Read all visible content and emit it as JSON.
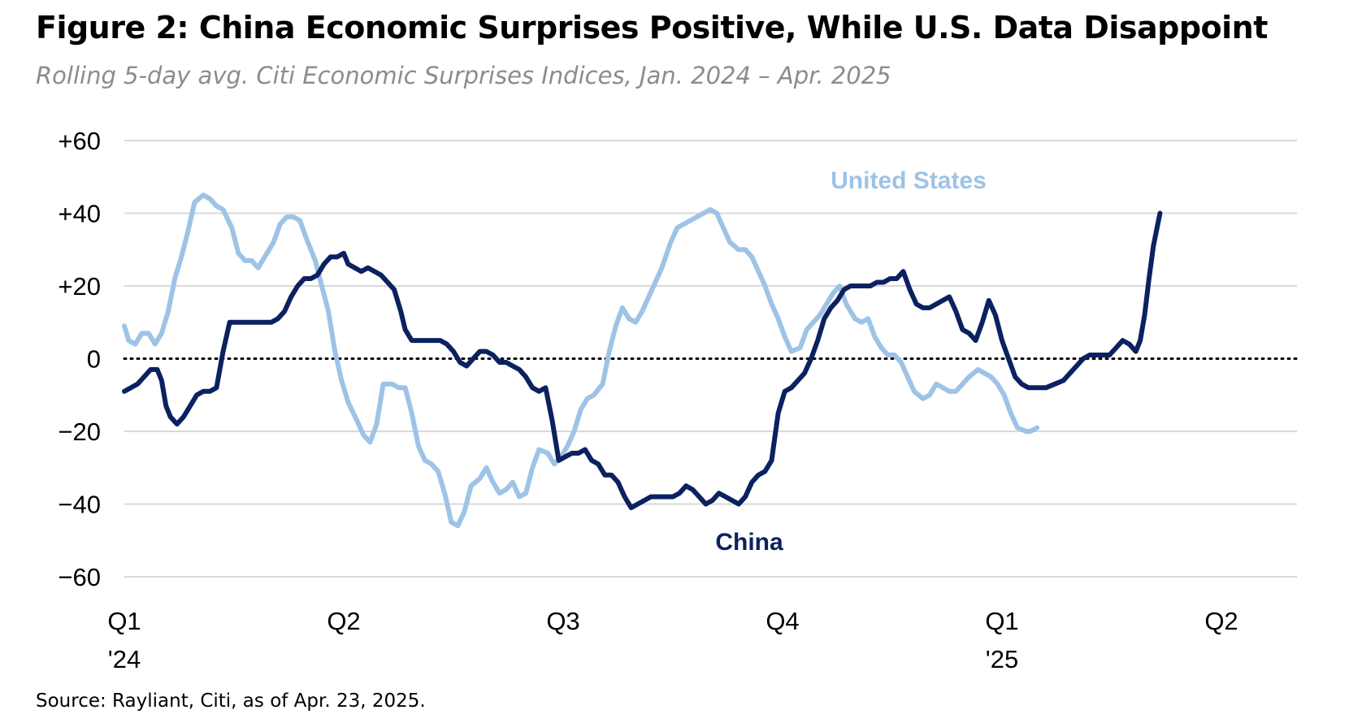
{
  "title": "Figure 2: China Economic Surprises Positive, While U.S. Data Disappoint",
  "subtitle": "Rolling 5-day avg. Citi Economic Surprises Indices, Jan. 2024 – Apr. 2025",
  "source": "Source: Rayliant, Citi, as of Apr. 23, 2025.",
  "colors": {
    "united_states": "#9dc3e6",
    "china": "#0b2160",
    "grid": "#d9d9d9",
    "zero_line": "#000000"
  },
  "chart_data": {
    "type": "line",
    "x_unit": "quarter (0 = Q1 '24)",
    "ylim": [
      -60,
      60
    ],
    "yticks": [
      {
        "value": 60,
        "label": "+60"
      },
      {
        "value": 40,
        "label": "+40"
      },
      {
        "value": 20,
        "label": "+20"
      },
      {
        "value": 0,
        "label": "0"
      },
      {
        "value": -20,
        "label": "−20"
      },
      {
        "value": -40,
        "label": "−40"
      },
      {
        "value": -60,
        "label": "−60"
      }
    ],
    "xticks": [
      {
        "x": 0,
        "label": "Q1",
        "sublabel": "'24"
      },
      {
        "x": 1,
        "label": "Q2",
        "sublabel": ""
      },
      {
        "x": 2,
        "label": "Q3",
        "sublabel": ""
      },
      {
        "x": 3,
        "label": "Q4",
        "sublabel": ""
      },
      {
        "x": 4,
        "label": "Q1",
        "sublabel": "'25"
      },
      {
        "x": 5,
        "label": "Q2",
        "sublabel": ""
      }
    ],
    "zero_line": "dotted",
    "grid": true,
    "series": [
      {
        "name": "United States",
        "color": "#9dc3e6",
        "points": [
          [
            0.0,
            9
          ],
          [
            0.02,
            5
          ],
          [
            0.05,
            4
          ],
          [
            0.08,
            7
          ],
          [
            0.11,
            7
          ],
          [
            0.14,
            4
          ],
          [
            0.17,
            7
          ],
          [
            0.2,
            13
          ],
          [
            0.23,
            22
          ],
          [
            0.26,
            28
          ],
          [
            0.29,
            35
          ],
          [
            0.32,
            43
          ],
          [
            0.36,
            45
          ],
          [
            0.39,
            44
          ],
          [
            0.42,
            42
          ],
          [
            0.45,
            41
          ],
          [
            0.49,
            36
          ],
          [
            0.52,
            29
          ],
          [
            0.55,
            27
          ],
          [
            0.58,
            27
          ],
          [
            0.61,
            25
          ],
          [
            0.65,
            29
          ],
          [
            0.68,
            32
          ],
          [
            0.71,
            37
          ],
          [
            0.74,
            39
          ],
          [
            0.77,
            39
          ],
          [
            0.8,
            38
          ],
          [
            0.83,
            33
          ],
          [
            0.87,
            27
          ],
          [
            0.9,
            20
          ],
          [
            0.93,
            13
          ],
          [
            0.96,
            2
          ],
          [
            0.99,
            -6
          ],
          [
            1.02,
            -12
          ],
          [
            1.06,
            -17
          ],
          [
            1.09,
            -21
          ],
          [
            1.12,
            -23
          ],
          [
            1.15,
            -18
          ],
          [
            1.18,
            -7
          ],
          [
            1.22,
            -7
          ],
          [
            1.25,
            -8
          ],
          [
            1.28,
            -8
          ],
          [
            1.31,
            -15
          ],
          [
            1.34,
            -24
          ],
          [
            1.37,
            -28
          ],
          [
            1.4,
            -29
          ],
          [
            1.43,
            -31
          ],
          [
            1.46,
            -37
          ],
          [
            1.49,
            -45
          ],
          [
            1.52,
            -46
          ],
          [
            1.55,
            -42
          ],
          [
            1.58,
            -35
          ],
          [
            1.62,
            -33
          ],
          [
            1.65,
            -30
          ],
          [
            1.68,
            -34
          ],
          [
            1.71,
            -37
          ],
          [
            1.74,
            -36
          ],
          [
            1.77,
            -34
          ],
          [
            1.8,
            -38
          ],
          [
            1.83,
            -37
          ],
          [
            1.86,
            -30
          ],
          [
            1.89,
            -25
          ],
          [
            1.93,
            -26
          ],
          [
            1.96,
            -29
          ],
          [
            1.99,
            -27
          ],
          [
            2.02,
            -24
          ],
          [
            2.05,
            -20
          ],
          [
            2.08,
            -14
          ],
          [
            2.11,
            -11
          ],
          [
            2.14,
            -10
          ],
          [
            2.18,
            -7
          ],
          [
            2.21,
            2
          ],
          [
            2.24,
            9
          ],
          [
            2.27,
            14
          ],
          [
            2.3,
            11
          ],
          [
            2.33,
            10
          ],
          [
            2.36,
            13
          ],
          [
            2.39,
            17
          ],
          [
            2.42,
            21
          ],
          [
            2.45,
            25
          ],
          [
            2.49,
            32
          ],
          [
            2.52,
            36
          ],
          [
            2.55,
            37
          ],
          [
            2.58,
            38
          ],
          [
            2.61,
            39
          ],
          [
            2.64,
            40
          ],
          [
            2.67,
            41
          ],
          [
            2.7,
            40
          ],
          [
            2.73,
            36
          ],
          [
            2.76,
            32
          ],
          [
            2.8,
            30
          ],
          [
            2.83,
            30
          ],
          [
            2.86,
            28
          ],
          [
            2.89,
            24
          ],
          [
            2.92,
            20
          ],
          [
            2.95,
            15
          ],
          [
            2.98,
            11
          ],
          [
            3.01,
            6
          ],
          [
            3.04,
            2
          ],
          [
            3.08,
            3
          ],
          [
            3.11,
            8
          ],
          [
            3.14,
            10
          ],
          [
            3.17,
            12
          ],
          [
            3.2,
            15
          ],
          [
            3.23,
            18
          ],
          [
            3.26,
            20
          ],
          [
            3.29,
            15
          ],
          [
            3.33,
            11
          ],
          [
            3.36,
            10
          ],
          [
            3.39,
            11
          ],
          [
            3.42,
            6
          ],
          [
            3.45,
            3
          ],
          [
            3.48,
            1
          ],
          [
            3.51,
            1
          ],
          [
            3.54,
            -1
          ],
          [
            3.57,
            -5
          ],
          [
            3.6,
            -9
          ],
          [
            3.64,
            -11
          ],
          [
            3.67,
            -10
          ],
          [
            3.7,
            -7
          ],
          [
            3.73,
            -8
          ],
          [
            3.76,
            -9
          ],
          [
            3.79,
            -9
          ],
          [
            3.82,
            -7
          ],
          [
            3.85,
            -5
          ],
          [
            3.89,
            -3
          ],
          [
            3.92,
            -4
          ],
          [
            3.95,
            -5
          ],
          [
            3.98,
            -7
          ],
          [
            4.01,
            -10
          ],
          [
            4.04,
            -15
          ],
          [
            4.07,
            -19
          ],
          [
            4.11,
            -20
          ],
          [
            4.13,
            -20
          ],
          [
            4.16,
            -19
          ]
        ]
      },
      {
        "name": "China",
        "color": "#0b2160",
        "points": [
          [
            0.0,
            -9
          ],
          [
            0.03,
            -8
          ],
          [
            0.06,
            -7
          ],
          [
            0.09,
            -5
          ],
          [
            0.12,
            -3
          ],
          [
            0.15,
            -3
          ],
          [
            0.17,
            -6
          ],
          [
            0.19,
            -13
          ],
          [
            0.21,
            -16
          ],
          [
            0.24,
            -18
          ],
          [
            0.27,
            -16
          ],
          [
            0.3,
            -13
          ],
          [
            0.33,
            -10
          ],
          [
            0.36,
            -9
          ],
          [
            0.39,
            -9
          ],
          [
            0.42,
            -8
          ],
          [
            0.45,
            2
          ],
          [
            0.48,
            10
          ],
          [
            0.51,
            10
          ],
          [
            0.55,
            10
          ],
          [
            0.59,
            10
          ],
          [
            0.63,
            10
          ],
          [
            0.67,
            10
          ],
          [
            0.7,
            11
          ],
          [
            0.73,
            13
          ],
          [
            0.76,
            17
          ],
          [
            0.79,
            20
          ],
          [
            0.82,
            22
          ],
          [
            0.85,
            22
          ],
          [
            0.88,
            23
          ],
          [
            0.91,
            26
          ],
          [
            0.94,
            28
          ],
          [
            0.97,
            28
          ],
          [
            1.0,
            29
          ],
          [
            1.02,
            26
          ],
          [
            1.05,
            25
          ],
          [
            1.08,
            24
          ],
          [
            1.11,
            25
          ],
          [
            1.14,
            24
          ],
          [
            1.17,
            23
          ],
          [
            1.2,
            21
          ],
          [
            1.23,
            19
          ],
          [
            1.26,
            13
          ],
          [
            1.28,
            8
          ],
          [
            1.31,
            5
          ],
          [
            1.35,
            5
          ],
          [
            1.4,
            5
          ],
          [
            1.44,
            5
          ],
          [
            1.47,
            4
          ],
          [
            1.5,
            2
          ],
          [
            1.53,
            -1
          ],
          [
            1.56,
            -2
          ],
          [
            1.59,
            0
          ],
          [
            1.62,
            2
          ],
          [
            1.65,
            2
          ],
          [
            1.68,
            1
          ],
          [
            1.71,
            -1
          ],
          [
            1.74,
            -1
          ],
          [
            1.77,
            -2
          ],
          [
            1.8,
            -3
          ],
          [
            1.83,
            -5
          ],
          [
            1.86,
            -8
          ],
          [
            1.89,
            -9
          ],
          [
            1.92,
            -8
          ],
          [
            1.95,
            -17
          ],
          [
            1.98,
            -28
          ],
          [
            2.01,
            -27
          ],
          [
            2.04,
            -26
          ],
          [
            2.07,
            -26
          ],
          [
            2.1,
            -25
          ],
          [
            2.13,
            -28
          ],
          [
            2.16,
            -29
          ],
          [
            2.19,
            -32
          ],
          [
            2.22,
            -32
          ],
          [
            2.25,
            -34
          ],
          [
            2.28,
            -38
          ],
          [
            2.31,
            -41
          ],
          [
            2.34,
            -40
          ],
          [
            2.37,
            -39
          ],
          [
            2.4,
            -38
          ],
          [
            2.45,
            -38
          ],
          [
            2.5,
            -38
          ],
          [
            2.53,
            -37
          ],
          [
            2.56,
            -35
          ],
          [
            2.59,
            -36
          ],
          [
            2.62,
            -38
          ],
          [
            2.65,
            -40
          ],
          [
            2.68,
            -39
          ],
          [
            2.71,
            -37
          ],
          [
            2.74,
            -38
          ],
          [
            2.77,
            -39
          ],
          [
            2.8,
            -40
          ],
          [
            2.83,
            -38
          ],
          [
            2.86,
            -34
          ],
          [
            2.89,
            -32
          ],
          [
            2.92,
            -31
          ],
          [
            2.95,
            -28
          ],
          [
            2.98,
            -15
          ],
          [
            3.01,
            -9
          ],
          [
            3.04,
            -8
          ],
          [
            3.07,
            -6
          ],
          [
            3.1,
            -4
          ],
          [
            3.13,
            0
          ],
          [
            3.16,
            5
          ],
          [
            3.19,
            11
          ],
          [
            3.22,
            14
          ],
          [
            3.25,
            16
          ],
          [
            3.28,
            19
          ],
          [
            3.31,
            20
          ],
          [
            3.35,
            20
          ],
          [
            3.4,
            20
          ],
          [
            3.43,
            21
          ],
          [
            3.46,
            21
          ],
          [
            3.49,
            22
          ],
          [
            3.52,
            22
          ],
          [
            3.55,
            24
          ],
          [
            3.58,
            19
          ],
          [
            3.61,
            15
          ],
          [
            3.64,
            14
          ],
          [
            3.67,
            14
          ],
          [
            3.7,
            15
          ],
          [
            3.73,
            16
          ],
          [
            3.76,
            17
          ],
          [
            3.79,
            13
          ],
          [
            3.82,
            8
          ],
          [
            3.85,
            7
          ],
          [
            3.88,
            5
          ],
          [
            3.91,
            10
          ],
          [
            3.94,
            16
          ],
          [
            3.97,
            12
          ],
          [
            4.0,
            5
          ],
          [
            4.03,
            0
          ],
          [
            4.06,
            -5
          ],
          [
            4.09,
            -7
          ],
          [
            4.12,
            -8
          ],
          [
            4.16,
            -8
          ],
          [
            4.2,
            -8
          ],
          [
            4.24,
            -7
          ],
          [
            4.28,
            -6
          ],
          [
            4.31,
            -4
          ],
          [
            4.34,
            -2
          ],
          [
            4.37,
            0
          ],
          [
            4.4,
            1
          ],
          [
            4.43,
            1
          ],
          [
            4.46,
            1
          ],
          [
            4.49,
            1
          ],
          [
            4.52,
            3
          ],
          [
            4.55,
            5
          ],
          [
            4.58,
            4
          ],
          [
            4.61,
            2
          ],
          [
            4.63,
            5
          ],
          [
            4.65,
            12
          ],
          [
            4.67,
            22
          ],
          [
            4.69,
            31
          ],
          [
            4.71,
            37
          ],
          [
            4.72,
            40
          ]
        ]
      }
    ],
    "series_labels": [
      {
        "series": "United States",
        "text": "United States"
      },
      {
        "series": "China",
        "text": "China"
      }
    ]
  }
}
